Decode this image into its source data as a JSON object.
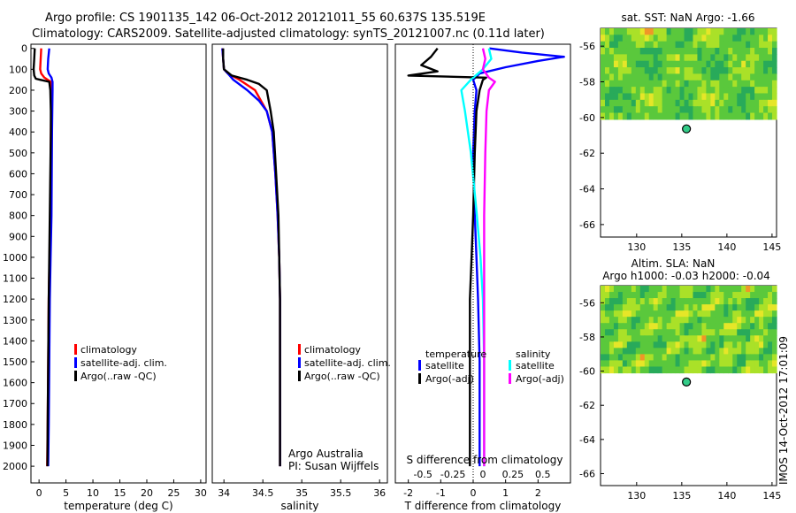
{
  "header": {
    "line1": "Argo profile: CS 1901135_142 06-Oct-2012 20121011_55 60.637S 135.519E",
    "line2": "Climatology: CARS2009. Satellite-adjusted climatology: synTS_20121007.nc (0.11d later)"
  },
  "footer_stamp": "IMOS 14-Oct-2012 17:01:09",
  "colors": {
    "climatology": "#ff0000",
    "satellite": "#0000ff",
    "argo": "#000000",
    "sal_satellite": "#00ffff",
    "sal_argo": "#ff00ff",
    "map_land": "#ffffff",
    "float_marker": "#33cc88"
  },
  "chart_data": [
    {
      "id": "temperature",
      "type": "line",
      "xlabel": "temperature (deg C)",
      "ylabel": "",
      "xlim": [
        -1.5,
        31
      ],
      "ylim": [
        2080,
        -20
      ],
      "xticks": [
        0,
        5,
        10,
        15,
        20,
        25,
        30
      ],
      "yticks": [
        0,
        100,
        200,
        300,
        400,
        500,
        600,
        700,
        800,
        900,
        1000,
        1100,
        1200,
        1300,
        1400,
        1500,
        1600,
        1700,
        1800,
        1900,
        2000
      ],
      "legend": [
        "climatology",
        "satellite-adj. clim.",
        "Argo(..raw -QC)"
      ],
      "series": [
        {
          "name": "climatology",
          "color": "#ff0000",
          "x": [
            0.4,
            0.3,
            0.2,
            0.4,
            1.0,
            2.2,
            2.3,
            2.25,
            2.2,
            2.15,
            2.1,
            1.95,
            1.8,
            1.7,
            1.6,
            1.5
          ],
          "y": [
            0,
            50,
            100,
            120,
            140,
            160,
            200,
            300,
            400,
            600,
            800,
            1000,
            1200,
            1500,
            1800,
            2000
          ]
        },
        {
          "name": "satellite-adj. clim.",
          "color": "#0000ff",
          "x": [
            1.9,
            1.7,
            1.6,
            1.8,
            2.3,
            2.5,
            2.5,
            2.45,
            2.4,
            2.35,
            2.3,
            2.15,
            2.0,
            1.9,
            1.8,
            1.7
          ],
          "y": [
            0,
            50,
            100,
            120,
            140,
            160,
            200,
            300,
            400,
            600,
            800,
            1000,
            1200,
            1500,
            1800,
            2000
          ]
        },
        {
          "name": "Argo(..raw -QC)",
          "color": "#000000",
          "x": [
            -0.8,
            -0.9,
            -1.0,
            -0.9,
            -0.6,
            0.2,
            1.9,
            2.1,
            2.2,
            2.2,
            2.1,
            2.0,
            1.9,
            1.8,
            1.7,
            1.6,
            1.55
          ],
          "y": [
            0,
            50,
            100,
            130,
            145,
            150,
            160,
            200,
            300,
            400,
            600,
            800,
            1000,
            1200,
            1500,
            1800,
            2000
          ]
        }
      ]
    },
    {
      "id": "salinity",
      "type": "line",
      "xlabel": "salinity",
      "xlim": [
        33.85,
        36.1
      ],
      "ylim": [
        2080,
        -20
      ],
      "xticks": [
        34,
        34.5,
        35,
        35.5,
        36
      ],
      "legend": [
        "climatology",
        "satellite-adj. clim.",
        "Argo(..raw -QC)"
      ],
      "annotation": [
        "Argo Australia",
        "PI: Susan Wijffels"
      ],
      "series": [
        {
          "name": "climatology",
          "color": "#ff0000",
          "x": [
            33.98,
            33.99,
            34.0,
            34.05,
            34.2,
            34.4,
            34.55,
            34.62,
            34.66,
            34.69,
            34.71,
            34.72,
            34.72,
            34.72
          ],
          "y": [
            0,
            50,
            100,
            120,
            150,
            200,
            300,
            400,
            600,
            800,
            1000,
            1200,
            1500,
            2000
          ]
        },
        {
          "name": "satellite-adj. clim.",
          "color": "#0000ff",
          "x": [
            33.98,
            33.99,
            34.0,
            34.05,
            34.12,
            34.3,
            34.45,
            34.55,
            34.62,
            34.66,
            34.69,
            34.71,
            34.72,
            34.72,
            34.72
          ],
          "y": [
            0,
            50,
            100,
            120,
            150,
            200,
            250,
            300,
            400,
            600,
            800,
            1000,
            1200,
            1500,
            2000
          ]
        },
        {
          "name": "Argo(..raw -QC)",
          "color": "#000000",
          "x": [
            33.99,
            33.99,
            34.0,
            34.1,
            34.3,
            34.45,
            34.55,
            34.6,
            34.64,
            34.67,
            34.7,
            34.71,
            34.72,
            34.72,
            34.72
          ],
          "y": [
            0,
            50,
            100,
            130,
            150,
            170,
            200,
            300,
            400,
            600,
            800,
            1000,
            1200,
            1500,
            2000
          ]
        }
      ]
    },
    {
      "id": "difference",
      "type": "line",
      "xlabel": "T difference from climatology",
      "top_label": "S difference from climatology",
      "xlim": [
        -2.4,
        3.0
      ],
      "xlim_salinity": [
        -0.73,
        0.73
      ],
      "ylim": [
        2080,
        -20
      ],
      "xticks": [
        -2,
        -1,
        0,
        1,
        2
      ],
      "xticks_salinity": [
        -0.5,
        -0.25,
        0,
        0.25,
        0.5
      ],
      "legend_temperature": {
        "title": "temperature",
        "items": [
          "satellite",
          "Argo(-adj)"
        ]
      },
      "legend_salinity": {
        "title": "salinity",
        "items": [
          "satellite",
          "Argo(-adj)"
        ]
      },
      "series": [
        {
          "name": "T satellite",
          "color": "#0000ff",
          "x": [
            0.5,
            1.5,
            2.8,
            2.0,
            1.0,
            0.2,
            0.0,
            0.1,
            0.05,
            0.0,
            0.05,
            0.1,
            0.15,
            0.2,
            0.2,
            0.2
          ],
          "y": [
            0,
            20,
            40,
            60,
            90,
            120,
            150,
            200,
            300,
            500,
            800,
            1000,
            1200,
            1500,
            1800,
            2000
          ]
        },
        {
          "name": "T Argo(-adj)",
          "color": "#000000",
          "x": [
            -1.1,
            -1.3,
            -1.6,
            -1.1,
            -2.0,
            0.4,
            0.3,
            0.2,
            0.1,
            0.05,
            0.0,
            -0.05,
            -0.1,
            -0.1,
            -0.1,
            -0.1
          ],
          "y": [
            0,
            40,
            80,
            110,
            130,
            140,
            150,
            200,
            300,
            500,
            800,
            1000,
            1200,
            1500,
            1800,
            2000
          ]
        },
        {
          "name": "S satellite",
          "color": "#00ffff",
          "x": [
            0.05,
            0.07,
            0.0,
            -0.1,
            -0.18,
            -0.15,
            -0.1,
            -0.05,
            -0.02,
            0.0,
            0.01,
            0.01
          ],
          "y": [
            0,
            50,
            100,
            150,
            200,
            300,
            500,
            800,
            1000,
            1200,
            1500,
            2000
          ]
        },
        {
          "name": "S Argo(-adj)",
          "color": "#ff00ff",
          "x": [
            0.0,
            0.02,
            0.0,
            0.05,
            0.1,
            0.05,
            0.03,
            0.02,
            0.01,
            0.01,
            0.01
          ],
          "y": [
            0,
            50,
            100,
            140,
            160,
            200,
            300,
            500,
            800,
            1000,
            2000
          ]
        }
      ]
    },
    {
      "id": "sst-map",
      "type": "heatmap",
      "title": "sat. SST: NaN Argo: -1.66",
      "xlim": [
        126,
        145.5
      ],
      "ylim": [
        -66.7,
        -55
      ],
      "xticks": [
        130,
        135,
        140,
        145
      ],
      "yticks": [
        -56,
        -58,
        -60,
        -62,
        -64,
        -66
      ],
      "data_extent_lat": [
        -60.1,
        -55
      ],
      "float_position": {
        "lon": 135.519,
        "lat": -60.637
      }
    },
    {
      "id": "sla-map",
      "type": "heatmap",
      "title": "Altim. SLA: NaN",
      "subtitle": "Argo h1000: -0.03 h2000: -0.04",
      "xlim": [
        126,
        145.5
      ],
      "ylim": [
        -66.7,
        -55
      ],
      "xticks": [
        130,
        135,
        140,
        145
      ],
      "yticks": [
        -56,
        -58,
        -60,
        -62,
        -64,
        -66
      ],
      "data_extent_lat": [
        -60.1,
        -55
      ],
      "float_position": {
        "lon": 135.519,
        "lat": -60.637
      }
    }
  ]
}
